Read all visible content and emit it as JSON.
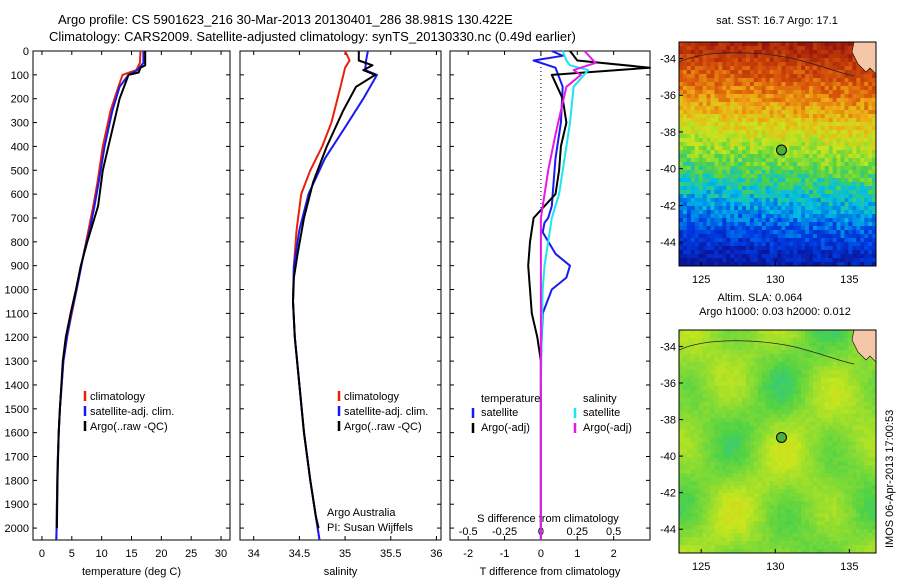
{
  "header": {
    "line1": "Argo profile: CS 5901623_216 30-Mar-2013 20130401_286 38.981S 130.422E",
    "line2": "Climatology: CARS2009. Satellite-adjusted climatology: synTS_20130330.nc (0.49d earlier)"
  },
  "colors": {
    "climatology": "#e8200c",
    "satellite": "#1a1aef",
    "argo": "#000000",
    "s_satellite": "#19e6f0",
    "s_argo": "#e619e6"
  },
  "depth_axis": {
    "ylim": [
      0,
      2050
    ],
    "ticks": [
      0,
      100,
      200,
      300,
      400,
      500,
      600,
      700,
      800,
      900,
      1000,
      1100,
      1200,
      1300,
      1400,
      1500,
      1600,
      1700,
      1800,
      1900,
      2000
    ],
    "tick_labels": [
      "0",
      "100",
      "200",
      "300",
      "400",
      "500",
      "600",
      "700",
      "800",
      "900",
      "1000",
      "1100",
      "1200",
      "1300",
      "1400",
      "1500",
      "1600",
      "1700",
      "1800",
      "1900",
      "2000"
    ]
  },
  "chart_data": [
    {
      "type": "line",
      "xlabel": "temperature (deg C)",
      "xlim": [
        -1.5,
        31.5
      ],
      "xticks": [
        0,
        5,
        10,
        15,
        20,
        25,
        30
      ],
      "xtick_labels": [
        "0",
        "5",
        "10",
        "15",
        "20",
        "25",
        "30"
      ],
      "legend": {
        "placement": "lower-center",
        "entries": [
          "climatology",
          "satellite-adj. clim.",
          "Argo(..raw -QC)"
        ]
      },
      "series": [
        {
          "name": "climatology",
          "color_key": "climatology",
          "x": [
            16.5,
            16.4,
            15.8,
            13.5,
            12.8,
            11.5,
            10.2,
            9.3,
            8.6,
            7.8,
            7.0,
            5.8,
            5.0,
            4.2,
            3.6,
            3.0,
            2.8,
            2.6,
            2.5,
            2.45,
            2.4
          ],
          "y": [
            0,
            50,
            80,
            100,
            150,
            250,
            400,
            550,
            650,
            750,
            850,
            1000,
            1100,
            1200,
            1300,
            1500,
            1600,
            1750,
            1900,
            2000,
            2050
          ]
        },
        {
          "name": "satellite-adj. clim.",
          "color_key": "satellite",
          "x": [
            17.0,
            17.0,
            16.0,
            14.5,
            13.0,
            11.8,
            10.5,
            9.5,
            8.8,
            8.0,
            7.0,
            5.8,
            4.9,
            4.2,
            3.6,
            3.0,
            2.8,
            2.6,
            2.5,
            2.45,
            2.4
          ],
          "y": [
            0,
            50,
            80,
            100,
            150,
            250,
            400,
            550,
            650,
            750,
            850,
            1000,
            1100,
            1200,
            1300,
            1500,
            1600,
            1750,
            1900,
            2000,
            2050
          ]
        },
        {
          "name": "Argo(..raw -QC)",
          "color_key": "argo",
          "x": [
            17.3,
            17.3,
            16.5,
            16.2,
            14.5,
            13.0,
            11.6,
            10.2,
            9.4,
            8.8,
            7.6,
            6.5,
            5.7,
            4.8,
            4.0,
            3.5,
            3.0,
            2.8,
            2.6,
            2.5
          ],
          "y": [
            0,
            60,
            70,
            90,
            100,
            200,
            350,
            500,
            650,
            700,
            800,
            900,
            1000,
            1100,
            1200,
            1300,
            1500,
            1600,
            1800,
            2000
          ]
        }
      ]
    },
    {
      "type": "line",
      "xlabel": "salinity",
      "xlim": [
        33.85,
        36.05
      ],
      "xticks": [
        34,
        34.5,
        35,
        35.5,
        36
      ],
      "xtick_labels": [
        "34",
        "34.5",
        "35",
        "35.5",
        "36"
      ],
      "legend": {
        "placement": "lower-center",
        "entries": [
          "climatology",
          "satellite-adj. clim.",
          "Argo(..raw -QC)"
        ]
      },
      "annotation": [
        "Argo Australia",
        "PI: Susan Wijffels"
      ],
      "series": [
        {
          "name": "climatology",
          "color_key": "climatology",
          "x": [
            35.0,
            35.05,
            35.0,
            34.95,
            34.85,
            34.75,
            34.62,
            34.52,
            34.47,
            34.44,
            34.43,
            34.45,
            34.5,
            34.55,
            34.62,
            34.68,
            34.72
          ],
          "y": [
            0,
            40,
            70,
            150,
            300,
            400,
            500,
            600,
            750,
            900,
            1050,
            1200,
            1400,
            1600,
            1800,
            1950,
            2050
          ]
        },
        {
          "name": "satellite-adj. clim.",
          "color_key": "satellite",
          "x": [
            35.25,
            35.23,
            35.22,
            35.35,
            35.2,
            35.0,
            34.78,
            34.6,
            34.5,
            34.44,
            34.43,
            34.45,
            34.5,
            34.55,
            34.62,
            34.68,
            34.72
          ],
          "y": [
            0,
            40,
            80,
            100,
            200,
            320,
            450,
            600,
            750,
            900,
            1050,
            1200,
            1400,
            1600,
            1800,
            1950,
            2050
          ]
        },
        {
          "name": "Argo(..raw -QC)",
          "color_key": "argo",
          "x": [
            35.15,
            35.15,
            35.3,
            35.2,
            35.33,
            35.12,
            34.98,
            34.8,
            34.65,
            34.55,
            34.48,
            34.44,
            34.43,
            34.45,
            34.5,
            34.55,
            34.62,
            34.68,
            34.71
          ],
          "y": [
            0,
            40,
            60,
            80,
            100,
            150,
            250,
            400,
            550,
            700,
            850,
            950,
            1050,
            1200,
            1400,
            1600,
            1800,
            1950,
            2000
          ]
        }
      ]
    },
    {
      "type": "line",
      "xlabel": "T difference from climatology",
      "top_xlabel": "S difference from climatology",
      "xlim": [
        -2.5,
        3.0
      ],
      "xticks": [
        -2,
        -1,
        0,
        1,
        2
      ],
      "xtick_labels": [
        "-2",
        "-1",
        "0",
        "1",
        "2"
      ],
      "top_xticks": [
        -0.5,
        -0.25,
        0,
        0.25,
        0.5
      ],
      "top_xtick_labels": [
        "-0.5",
        "-0.25",
        "0",
        "0.25",
        "0.5"
      ],
      "zero_line": "dotted",
      "legend": {
        "placement": "lower-center",
        "headers": [
          "temperature",
          "salinity"
        ],
        "entries": [
          "satellite",
          "Argo(-adj)",
          "satellite",
          "Argo(-adj)"
        ]
      },
      "series": [
        {
          "name": "satellite",
          "group": "temperature",
          "color_key": "satellite",
          "x": [
            0.3,
            0.6,
            -0.2,
            0.4,
            0.6,
            0.55,
            0.4,
            0.35,
            0.3,
            0.2,
            0.1,
            0.05,
            0.4,
            0.8,
            0.7,
            0.3,
            0.05,
            0,
            0
          ],
          "y": [
            0,
            20,
            40,
            70,
            150,
            300,
            450,
            550,
            650,
            700,
            720,
            760,
            850,
            900,
            950,
            1000,
            1100,
            1300,
            2050
          ]
        },
        {
          "name": "Argo(-adj)",
          "group": "temperature",
          "color_key": "argo",
          "x": [
            0.8,
            1.0,
            3.0,
            0.3,
            0.6,
            0.7,
            0.55,
            0.5,
            0.4,
            -0.2,
            -0.3,
            -0.35,
            -0.3,
            -0.25,
            -0.1,
            0,
            0
          ],
          "y": [
            0,
            40,
            70,
            100,
            200,
            300,
            400,
            500,
            600,
            700,
            800,
            900,
            1000,
            1100,
            1200,
            1300,
            2050
          ]
        },
        {
          "name": "satellite",
          "group": "salinity",
          "color_key": "s_satellite",
          "x": [
            0.6,
            0.7,
            0.8,
            1.3,
            0.9,
            0.8,
            0.7,
            0.6,
            0.5,
            0.3,
            0.2,
            0.1,
            0.05,
            0.02,
            0,
            0
          ],
          "y": [
            0,
            40,
            60,
            80,
            150,
            300,
            400,
            500,
            600,
            700,
            800,
            900,
            1000,
            1200,
            1400,
            2050
          ]
        },
        {
          "name": "Argo(-adj)",
          "group": "salinity",
          "color_key": "s_argo",
          "x": [
            1.2,
            1.5,
            0.9,
            1.1,
            0.7,
            0.55,
            0.4,
            0.2,
            0,
            0,
            0
          ],
          "y": [
            0,
            50,
            80,
            100,
            150,
            250,
            350,
            500,
            700,
            1000,
            2050
          ]
        }
      ]
    },
    {
      "type": "heatmap",
      "title": "sat. SST: 16.7  Argo: 17.1",
      "xlim": [
        123.5,
        136.8
      ],
      "ylim": [
        -45.3,
        -33.1
      ],
      "xticks": [
        125,
        130,
        135
      ],
      "xtick_labels": [
        "125",
        "130",
        "135"
      ],
      "yticks": [
        -34,
        -36,
        -38,
        -40,
        -42,
        -44
      ],
      "ytick_labels": [
        "-34",
        "-36",
        "-38",
        "-40",
        "-42",
        "-44"
      ],
      "marker": {
        "lon": 130.42,
        "lat": -38.98
      }
    },
    {
      "type": "heatmap",
      "title": "Altim. SLA: 0.064",
      "subtitle": "Argo h1000: 0.03 h2000: 0.012",
      "xlim": [
        123.5,
        136.8
      ],
      "ylim": [
        -45.3,
        -33.1
      ],
      "xticks": [
        125,
        130,
        135
      ],
      "xtick_labels": [
        "125",
        "130",
        "135"
      ],
      "yticks": [
        -34,
        -36,
        -38,
        -40,
        -42,
        -44
      ],
      "ytick_labels": [
        "-34",
        "-36",
        "-38",
        "-40",
        "-42",
        "-44"
      ],
      "marker": {
        "lon": 130.42,
        "lat": -38.98
      }
    }
  ],
  "side_label": "IMOS 06-Apr-2013 17:00:53"
}
